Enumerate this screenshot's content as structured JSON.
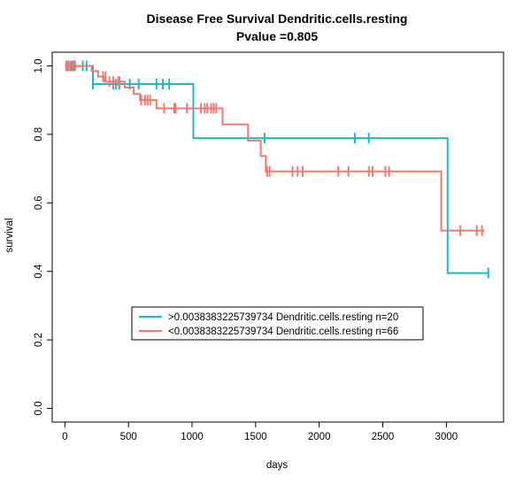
{
  "chart_data": {
    "type": "line",
    "title": "Disease Free Survival Dendritic.cells.resting",
    "subtitle": "Pvalue =0.805",
    "xlabel": "days",
    "ylabel": "survival",
    "xlim": [
      -100,
      3450
    ],
    "ylim": [
      -0.04,
      1.04
    ],
    "xticks": [
      0,
      500,
      1000,
      1500,
      2000,
      2500,
      3000
    ],
    "yticks": [
      0.0,
      0.2,
      0.4,
      0.6,
      0.8,
      1.0
    ],
    "xtick_labels": [
      "0",
      "500",
      "1000",
      "1500",
      "2000",
      "2500",
      "3000"
    ],
    "ytick_labels": [
      "0.0",
      "0.2",
      "0.4",
      "0.6",
      "0.8",
      "1.0"
    ],
    "grid": false,
    "legend_position": "bottom-center",
    "series": [
      {
        "name": ">0.0038383225739734 Dendritic.cells.resting n=20",
        "color": "#1fb8c8",
        "steps": [
          [
            0,
            1.0
          ],
          [
            220,
            0.947
          ],
          [
            1010,
            0.789
          ],
          [
            3010,
            0.395
          ],
          [
            3330,
            0.395
          ]
        ],
        "censor": [
          [
            20,
            1.0
          ],
          [
            50,
            1.0
          ],
          [
            70,
            1.0
          ],
          [
            140,
            1.0
          ],
          [
            170,
            1.0
          ],
          [
            220,
            0.947
          ],
          [
            380,
            0.947
          ],
          [
            400,
            0.947
          ],
          [
            430,
            0.947
          ],
          [
            510,
            0.947
          ],
          [
            580,
            0.947
          ],
          [
            720,
            0.947
          ],
          [
            770,
            0.947
          ],
          [
            820,
            0.947
          ],
          [
            1570,
            0.789
          ],
          [
            2280,
            0.789
          ],
          [
            2390,
            0.789
          ],
          [
            3330,
            0.395
          ]
        ]
      },
      {
        "name": "<0.0038383225739734 Dendritic.cells.resting n=66",
        "color": "#f07a72",
        "steps": [
          [
            0,
            1.0
          ],
          [
            210,
            0.985
          ],
          [
            260,
            0.969
          ],
          [
            310,
            0.954
          ],
          [
            470,
            0.937
          ],
          [
            540,
            0.918
          ],
          [
            590,
            0.9
          ],
          [
            720,
            0.876
          ],
          [
            1240,
            0.829
          ],
          [
            1440,
            0.782
          ],
          [
            1540,
            0.737
          ],
          [
            1580,
            0.692
          ],
          [
            2960,
            0.519
          ],
          [
            3300,
            0.519
          ]
        ],
        "censor": [
          [
            10,
            1.0
          ],
          [
            25,
            1.0
          ],
          [
            40,
            1.0
          ],
          [
            60,
            1.0
          ],
          [
            80,
            1.0
          ],
          [
            300,
            0.969
          ],
          [
            320,
            0.969
          ],
          [
            350,
            0.954
          ],
          [
            380,
            0.954
          ],
          [
            420,
            0.954
          ],
          [
            430,
            0.954
          ],
          [
            600,
            0.9
          ],
          [
            630,
            0.9
          ],
          [
            650,
            0.9
          ],
          [
            670,
            0.9
          ],
          [
            780,
            0.876
          ],
          [
            860,
            0.876
          ],
          [
            870,
            0.876
          ],
          [
            960,
            0.876
          ],
          [
            1070,
            0.876
          ],
          [
            1100,
            0.876
          ],
          [
            1120,
            0.876
          ],
          [
            1150,
            0.876
          ],
          [
            1170,
            0.876
          ],
          [
            1190,
            0.876
          ],
          [
            1590,
            0.692
          ],
          [
            1610,
            0.692
          ],
          [
            1790,
            0.692
          ],
          [
            1830,
            0.692
          ],
          [
            1870,
            0.692
          ],
          [
            2150,
            0.692
          ],
          [
            2230,
            0.692
          ],
          [
            2390,
            0.692
          ],
          [
            2420,
            0.692
          ],
          [
            2520,
            0.692
          ],
          [
            2550,
            0.692
          ],
          [
            3110,
            0.519
          ],
          [
            3240,
            0.519
          ],
          [
            3280,
            0.519
          ]
        ]
      }
    ]
  }
}
